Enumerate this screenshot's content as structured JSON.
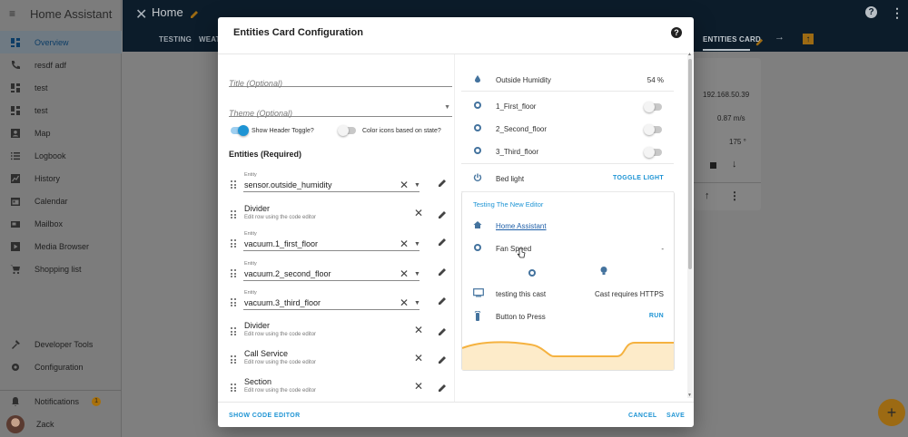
{
  "sidebar": {
    "title": "Home Assistant",
    "items": [
      {
        "label": "Overview",
        "icon": "dashboard-icon",
        "active": true
      },
      {
        "label": "resdf adf",
        "icon": "phone-icon"
      },
      {
        "label": "test",
        "icon": "dashboard-icon"
      },
      {
        "label": "test",
        "icon": "dashboard-icon"
      },
      {
        "label": "Map",
        "icon": "account-box-icon"
      },
      {
        "label": "Logbook",
        "icon": "list-icon"
      },
      {
        "label": "History",
        "icon": "chart-icon"
      },
      {
        "label": "Calendar",
        "icon": "calendar-icon"
      },
      {
        "label": "Mailbox",
        "icon": "mailbox-icon"
      },
      {
        "label": "Media Browser",
        "icon": "play-box-icon"
      },
      {
        "label": "Shopping list",
        "icon": "cart-icon"
      }
    ],
    "bottom": {
      "developer_tools": "Developer Tools",
      "configuration": "Configuration",
      "notifications": "Notifications",
      "notifications_count": "1",
      "user": "Zack"
    }
  },
  "topbar": {
    "title": "Home",
    "tabs": [
      "TESTING",
      "WEAT",
      "ENTITIES CARD"
    ]
  },
  "background_card": {
    "ip": "192.168.50.39",
    "speed": "0.87 m/s",
    "angle": "175 °"
  },
  "dialog": {
    "title": "Entities Card Configuration",
    "title_placeholder": "Title (Optional)",
    "theme_placeholder": "Theme (Optional)",
    "show_header_toggle": "Show Header Toggle?",
    "color_icons": "Color icons based on state?",
    "entities_heading": "Entities (Required)",
    "rows": [
      {
        "type": "entity",
        "caption": "Entity",
        "value": "sensor.outside_humidity"
      },
      {
        "type": "special",
        "title": "Divider",
        "sub": "Edit row using the code editor"
      },
      {
        "type": "entity",
        "caption": "Entity",
        "value": "vacuum.1_first_floor"
      },
      {
        "type": "entity",
        "caption": "Entity",
        "value": "vacuum.2_second_floor"
      },
      {
        "type": "entity",
        "caption": "Entity",
        "value": "vacuum.3_third_floor"
      },
      {
        "type": "special",
        "title": "Divider",
        "sub": "Edit row using the code editor"
      },
      {
        "type": "special",
        "title": "Call Service",
        "sub": "Edit row using the code editor"
      },
      {
        "type": "special",
        "title": "Section",
        "sub": "Edit row using the code editor"
      }
    ],
    "show_code_editor": "SHOW CODE EDITOR",
    "cancel": "CANCEL",
    "save": "SAVE"
  },
  "preview": {
    "humidity_name": "Outside Humidity",
    "humidity_value": "54 %",
    "vac1": "1_First_floor",
    "vac2": "2_Second_floor",
    "vac3": "3_Third_floor",
    "bed_light": "Bed light",
    "toggle_light": "TOGGLE LIGHT",
    "section_label": "Testing The New Editor",
    "weblink": "Home Assistant",
    "fan_speed": "Fan Speed",
    "fan_value": "-",
    "cast_name": "testing this cast",
    "cast_state": "Cast requires HTTPS",
    "button_name": "Button to Press",
    "run": "RUN",
    "graph_color": "#f5b240"
  }
}
